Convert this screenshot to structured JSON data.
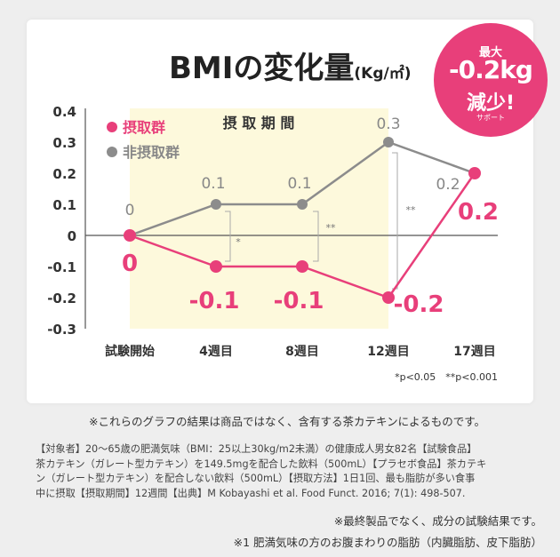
{
  "chart_data": {
    "type": "line",
    "title": "BMIの変化量",
    "title_unit": "(Kg/㎡)",
    "categories": [
      "試験開始",
      "4週目",
      "8週目",
      "12週目",
      "17週目"
    ],
    "ylim": [
      -0.3,
      0.4
    ],
    "yticks": [
      "0.4",
      "0.3",
      "0.2",
      "0.1",
      "0",
      "-0.1",
      "-0.2",
      "-0.3"
    ],
    "grid": false,
    "legend_position": "top-left",
    "series": [
      {
        "name": "摂取群",
        "values": [
          0,
          -0.1,
          -0.1,
          -0.2,
          0.2
        ],
        "labels": [
          "0",
          "-0.1",
          "-0.1",
          "-0.2",
          "0.2"
        ],
        "color": "#e83f7a"
      },
      {
        "name": "非摂取群",
        "values": [
          0,
          0.1,
          0.1,
          0.3,
          0.2
        ],
        "labels": [
          "0",
          "0.1",
          "0.1",
          "0.3",
          "0.2"
        ],
        "color": "#8c8c8c"
      }
    ],
    "intake_period_label": "摂 取 期 間",
    "significance": [
      "*",
      "**",
      "**"
    ],
    "significance_legend": "*p<0.05　**p<0.001"
  },
  "colors": {
    "accent": "#e83f7a",
    "control": "#8c8c8c",
    "period_band": "#fdf9dc"
  },
  "badge": {
    "line1": "最大",
    "line2": "-0.2kg",
    "line3": "減少!",
    "line4": "サポート"
  },
  "notes": {
    "graph_note": "※これらのグラフの結果は商品ではなく、含有する茶カテキンによるものです。",
    "details": [
      "【対象者】20〜65歳の肥満気味（BMI：25以上30kg/m2未満）の健康成人男女82名【試験食品】",
      "茶カテキン（ガレート型カテキン）を149.5mgを配合した飲料（500mL）【プラセボ食品】茶カテキ",
      "ン（ガレート型カテキン）を配合しない飲料（500mL）【摂取方法】1日1回、最も脂肪が多い食事",
      "中に摂取【摂取期間】12週間【出典】M Kobayashi et al. Food Funct. 2016; 7(1): 498-507."
    ],
    "final_note": "※最終製品でなく、成分の試験結果です。",
    "footnote": "※1 肥満気味の方のお腹まわりの脂肪（内臓脂肪、皮下脂肪）"
  }
}
